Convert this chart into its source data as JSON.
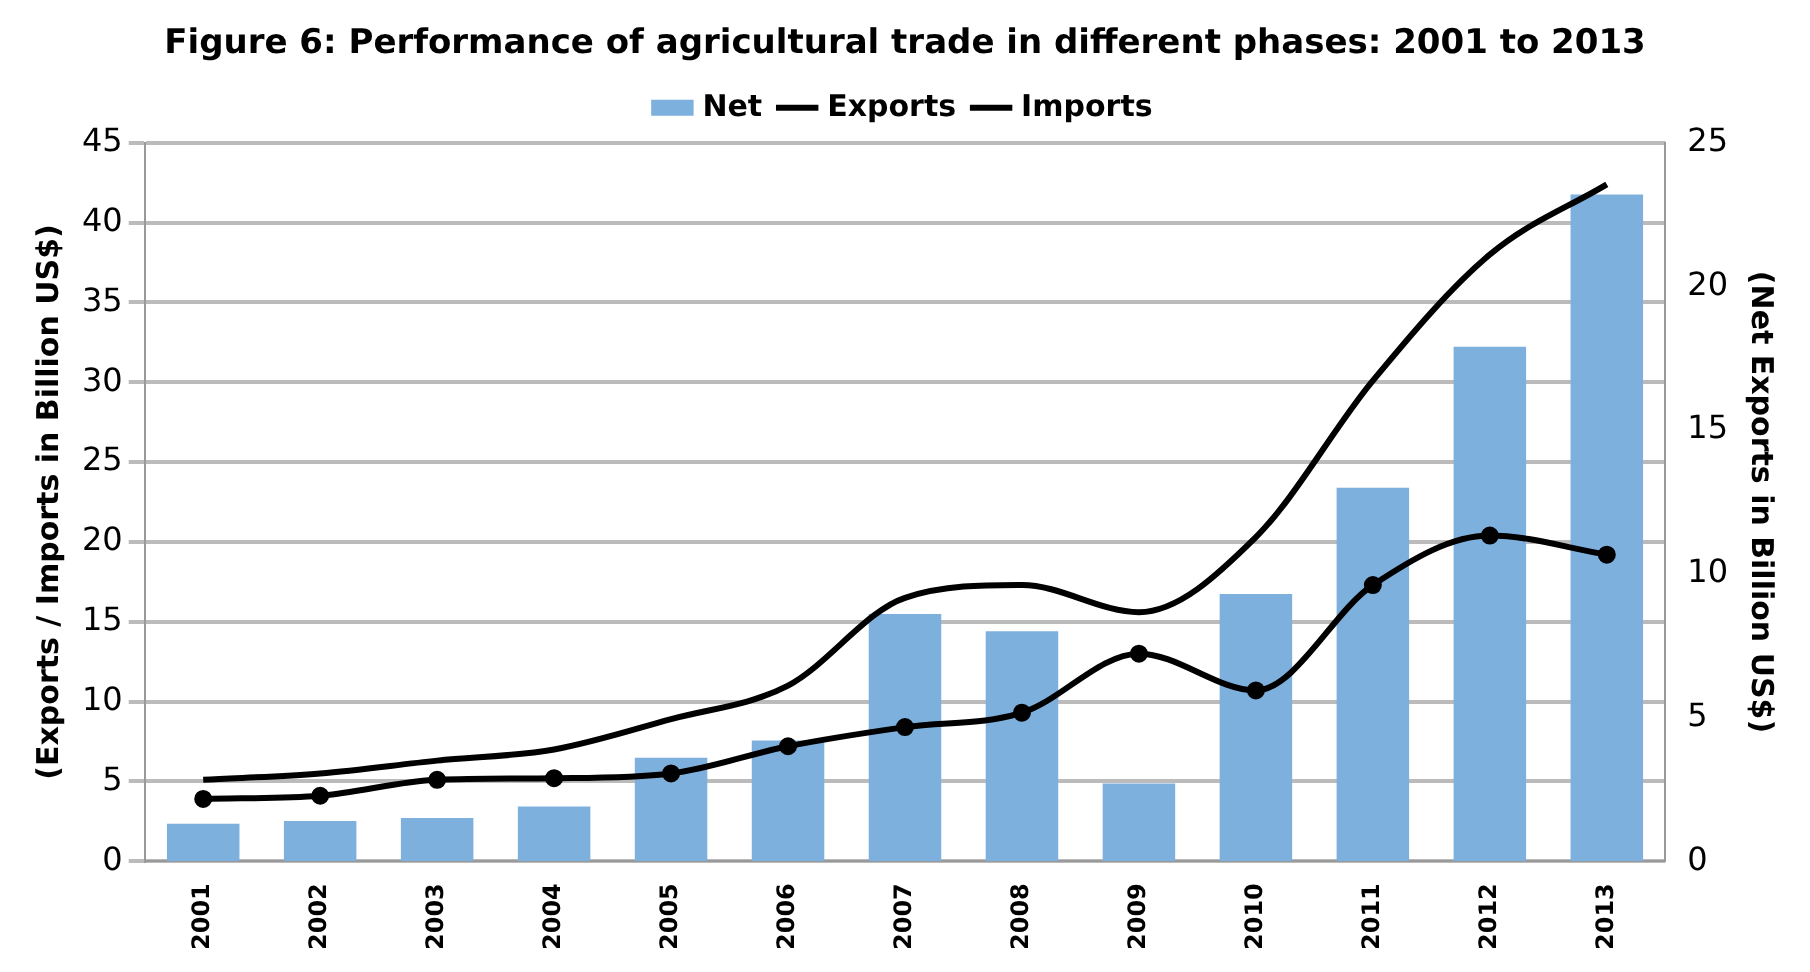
{
  "chart_data": {
    "type": "bar",
    "title": "Figure 6: Performance of agricultural trade in different phases: 2001 to 2013",
    "ylabel": "(Exports / Imports in Billion US$)",
    "y2label": "(Net Exports in Billion US$)",
    "categories": [
      "2001",
      "2002",
      "2003",
      "2004",
      "2005",
      "2006",
      "2007",
      "2008",
      "2009",
      "2010",
      "2011",
      "2012",
      "2013"
    ],
    "series": [
      {
        "name": "Net",
        "axis": "y2",
        "color": "#7eb0dd",
        "values": [
          1.3,
          1.4,
          1.5,
          1.9,
          3.6,
          4.2,
          8.6,
          8.0,
          2.7,
          9.3,
          13.0,
          17.9,
          23.2
        ]
      },
      {
        "name": "Exports",
        "type": "line",
        "color": "#000000",
        "marker": "none",
        "values": [
          5.1,
          5.5,
          6.3,
          7.0,
          8.9,
          11.0,
          16.5,
          17.3,
          15.6,
          20.3,
          30.1,
          38.0,
          42.4
        ]
      },
      {
        "name": "Imports",
        "type": "line",
        "color": "#000000",
        "marker": "circle",
        "values": [
          3.9,
          4.1,
          5.1,
          5.2,
          5.5,
          7.2,
          8.4,
          9.3,
          13.0,
          10.7,
          17.3,
          20.4,
          19.2
        ]
      }
    ],
    "ylim": [
      0,
      45
    ],
    "yticks": [
      0,
      5,
      10,
      15,
      20,
      25,
      30,
      35,
      40,
      45
    ],
    "y2lim": [
      0,
      25
    ],
    "y2ticks": [
      0,
      5,
      10,
      15,
      20,
      25
    ],
    "grid": "y",
    "legend": "top"
  }
}
